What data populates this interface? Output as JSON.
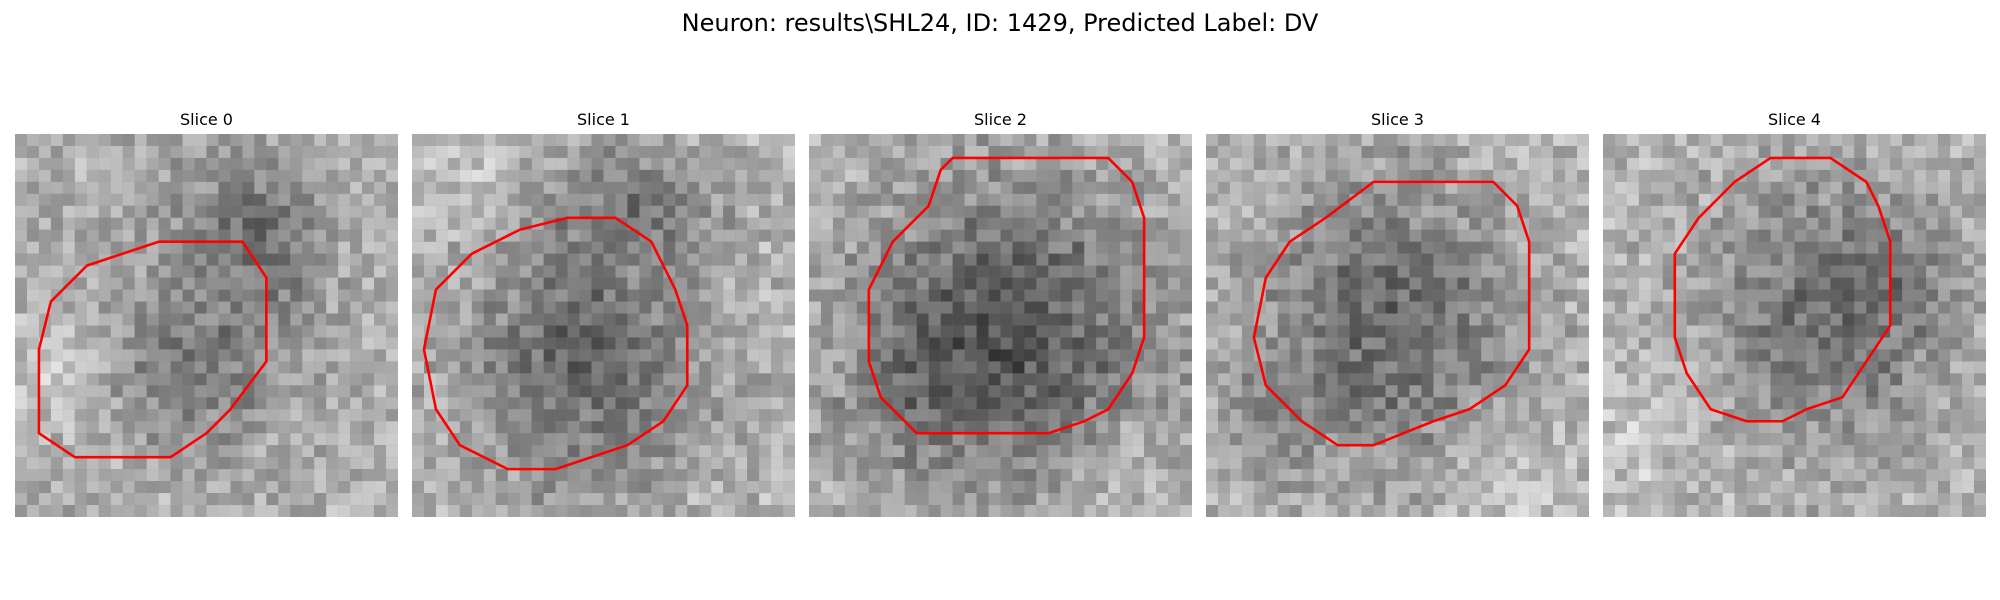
{
  "figure": {
    "title": "Neuron: results\\SHL24, ID: 1429, Predicted Label: DV"
  },
  "slices": [
    {
      "label": "Slice 0"
    },
    {
      "label": "Slice 1"
    },
    {
      "label": "Slice 2"
    },
    {
      "label": "Slice 3"
    },
    {
      "label": "Slice 4"
    }
  ],
  "colors": {
    "contour": "#ff0000",
    "background": "#ffffff"
  }
}
